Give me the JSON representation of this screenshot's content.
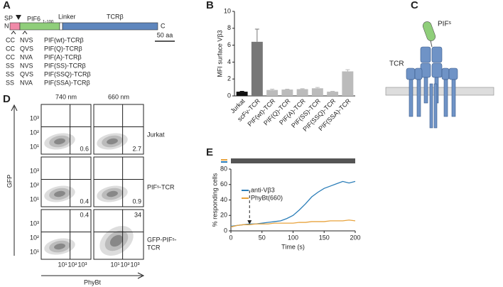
{
  "panels": [
    "A",
    "B",
    "C",
    "D",
    "E"
  ],
  "construct": {
    "sp": "SP",
    "pif": "PIF6",
    "pif_sub": "1-100",
    "linker": "Linker",
    "tcr": "TCRβ",
    "n": "N",
    "c": "C",
    "scale": "50 aa",
    "variants": [
      {
        "a": "CC",
        "b": "NVS",
        "name": "PIF(wt)-TCRβ"
      },
      {
        "a": "CC",
        "b": "QVS",
        "name": "PIF(Q)-TCRβ"
      },
      {
        "a": "CC",
        "b": "NVA",
        "name": "PIF(A)-TCRβ"
      },
      {
        "a": "SS",
        "b": "NVS",
        "name": "PIF(SS)-TCRβ"
      },
      {
        "a": "SS",
        "b": "QVS",
        "name": "PIF(SSQ)-TCRβ"
      },
      {
        "a": "SS",
        "b": "NVA",
        "name": "PIF(SSA)-TCRβ"
      }
    ]
  },
  "chart_data": [
    {
      "type": "bar",
      "ylabel": "MFI surface Vβ3",
      "categories": [
        "Jurkat",
        "scFv-TCR",
        "PIF(wt)-TCR",
        "PIF(Q)-TCR",
        "PIF(A)-TCR",
        "PIF(SS)-TCR",
        "PIF(SSQ)-TCR",
        "PIF(SSA)-TCR"
      ],
      "values": [
        0.5,
        6.4,
        0.7,
        0.75,
        0.8,
        0.9,
        0.5,
        2.9
      ],
      "errors": [
        0.05,
        1.5,
        0.1,
        0.05,
        0.05,
        0.1,
        0.05,
        0.2
      ],
      "colors": [
        "#111111",
        "#777777",
        "#bbbbbb",
        "#bbbbbb",
        "#bbbbbb",
        "#bbbbbb",
        "#bbbbbb",
        "#bbbbbb"
      ],
      "ylim": [
        0,
        10
      ],
      "yticks": [
        0,
        2,
        4,
        6,
        8,
        10
      ]
    },
    {
      "type": "line",
      "xlabel": "Time (s)",
      "ylabel": "% responding cells",
      "x": [
        0,
        10,
        20,
        30,
        40,
        50,
        60,
        70,
        80,
        90,
        100,
        110,
        120,
        130,
        140,
        150,
        160,
        170,
        180,
        190,
        200
      ],
      "series": [
        {
          "name": "anti-Vβ3",
          "color": "#2a7db8",
          "values": [
            6,
            7,
            8,
            9,
            9,
            10,
            11,
            12,
            13,
            16,
            20,
            27,
            35,
            44,
            50,
            55,
            58,
            61,
            64,
            62,
            64
          ]
        },
        {
          "name": "PhyBt(660)",
          "color": "#e8a33d",
          "values": [
            5,
            7,
            8,
            8,
            9,
            9,
            9,
            10,
            10,
            10,
            10,
            11,
            11,
            12,
            12,
            12,
            13,
            13,
            13,
            14,
            13
          ]
        }
      ],
      "arrow_x": 30,
      "light_on": [
        0,
        200
      ],
      "xlim": [
        0,
        200
      ],
      "xticks": [
        0,
        50,
        100,
        150,
        200
      ],
      "ylim": [
        0,
        80
      ],
      "yticks": [
        0,
        20,
        40,
        60,
        80
      ]
    }
  ],
  "receptor": {
    "pif": "PIFˢ",
    "tcr": "TCR"
  },
  "flow": {
    "columns": [
      "740 nm",
      "660 nm"
    ],
    "rows": [
      [
        "Jurkat"
      ],
      [
        "PIFˢ-TCR"
      ],
      [
        "GFP-PIFˢ-",
        "TCR"
      ]
    ],
    "numbers": [
      [
        "0.6",
        "2.7"
      ],
      [
        "0.4",
        "0.9"
      ],
      [
        "0.4",
        "34"
      ]
    ],
    "ticks": [
      "10¹",
      "10²",
      "10³"
    ],
    "ylabel": "GFP",
    "xlabel": "PhyBt"
  }
}
